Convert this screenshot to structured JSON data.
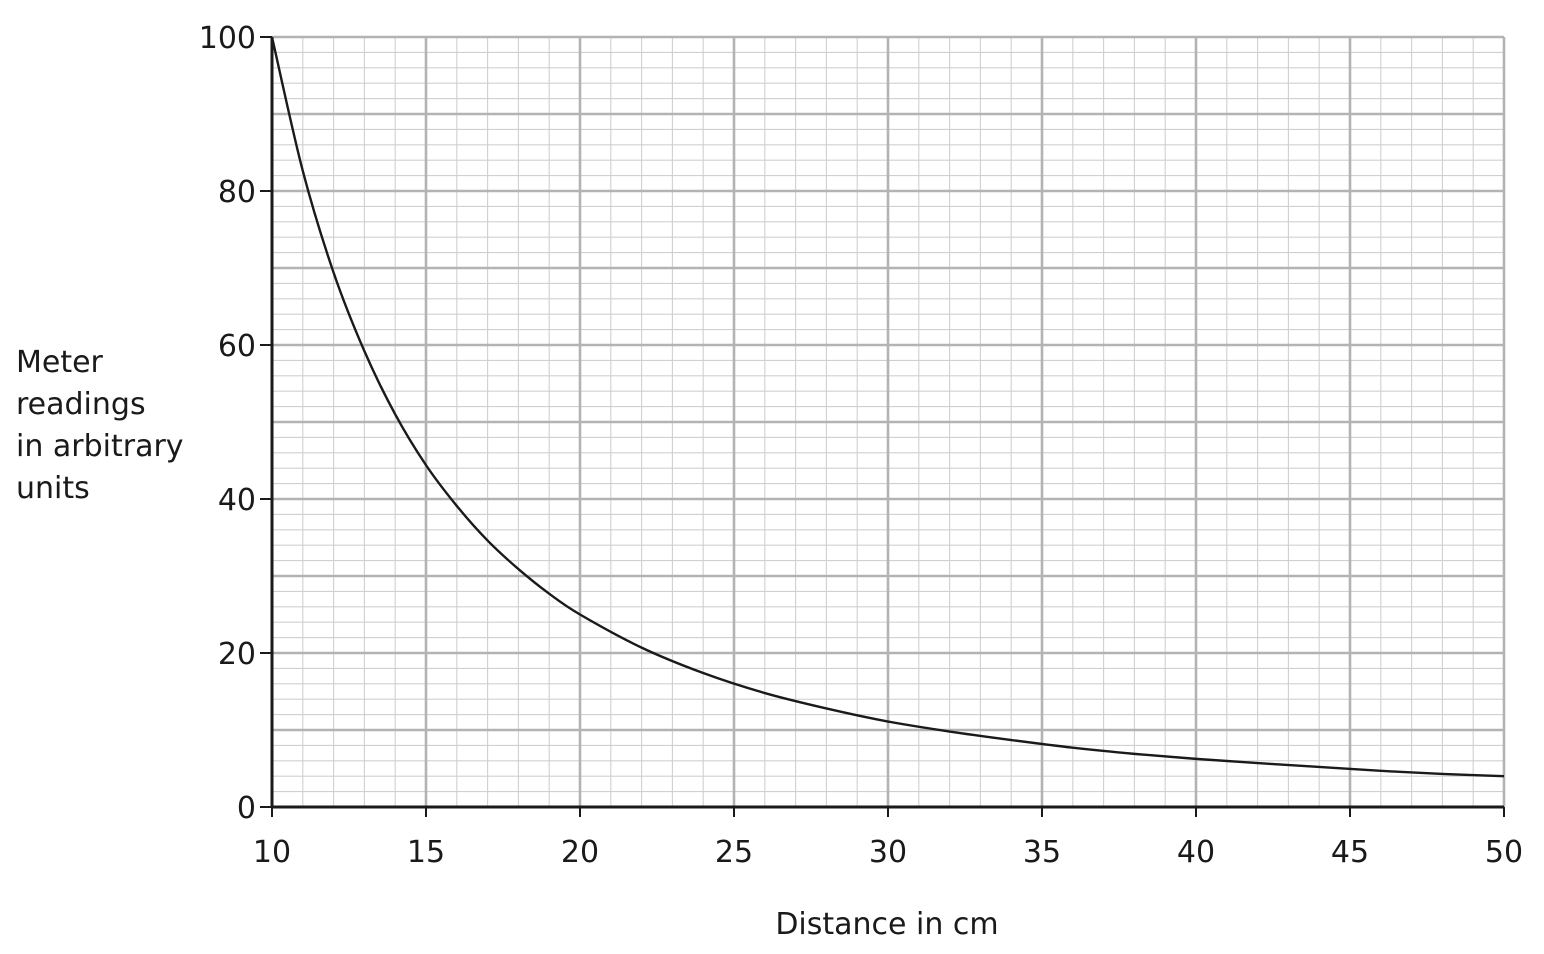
{
  "chart_data": {
    "type": "line",
    "title": "",
    "xlabel": "Distance in cm",
    "ylabel_lines": [
      "Meter",
      "readings",
      "in arbitrary",
      "units"
    ],
    "xlim": [
      10,
      50
    ],
    "ylim": [
      0,
      100
    ],
    "x_ticks": [
      "10",
      "15",
      "20",
      "25",
      "30",
      "35",
      "40",
      "45",
      "50"
    ],
    "y_ticks": [
      "0",
      "20",
      "40",
      "60",
      "80",
      "100"
    ],
    "grid": true,
    "legend": "none",
    "series": [
      {
        "x": [
          10,
          11,
          12,
          13,
          14,
          15,
          16,
          17,
          18,
          19,
          20,
          22,
          24,
          26,
          28,
          30,
          32,
          34,
          36,
          38,
          40,
          42,
          44,
          46,
          48,
          50
        ],
        "y": [
          100,
          82.6,
          69.4,
          59.2,
          51.0,
          44.4,
          39.1,
          34.6,
          30.9,
          27.7,
          25.0,
          20.7,
          17.4,
          14.8,
          12.8,
          11.1,
          9.8,
          8.7,
          7.7,
          6.9,
          6.25,
          5.7,
          5.2,
          4.7,
          4.3,
          4.0
        ]
      }
    ],
    "colors": {
      "major_grid": "#b3b3b3",
      "minor_grid": "#d0d0d0",
      "axis": "#1a1a1a",
      "curve": "#1a1a1a"
    }
  }
}
